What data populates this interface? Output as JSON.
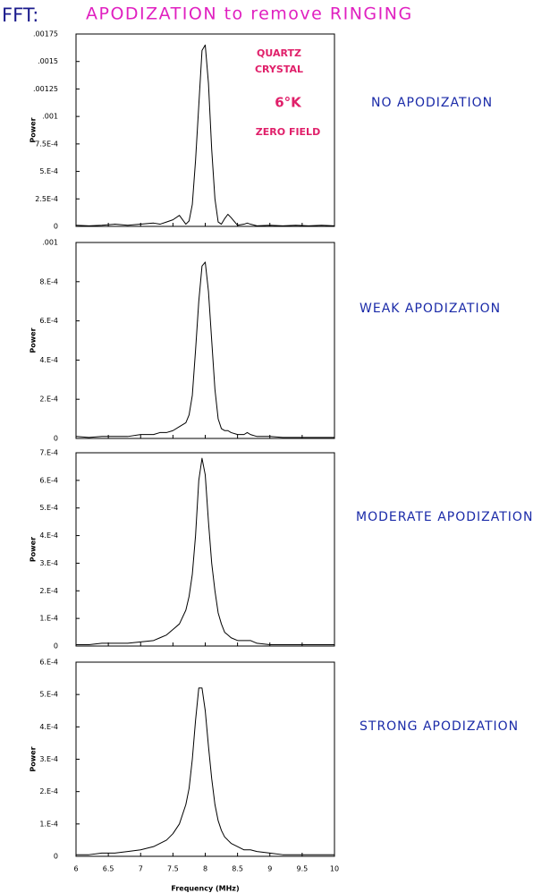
{
  "title_prefix": "FFT:",
  "title": "APODIZATION to remove RINGING",
  "chart_data": [
    {
      "type": "line",
      "annotation": "NO APODIZATION",
      "notes": [
        "QUARTZ",
        "CRYSTAL",
        "6°K",
        "ZERO FIELD"
      ],
      "ylabel": "Power",
      "x": [
        6.0,
        6.2,
        6.4,
        6.6,
        6.8,
        7.0,
        7.2,
        7.3,
        7.4,
        7.5,
        7.6,
        7.7,
        7.75,
        7.8,
        7.85,
        7.9,
        7.95,
        8.0,
        8.05,
        8.1,
        8.15,
        8.2,
        8.25,
        8.3,
        8.35,
        8.4,
        8.5,
        8.6,
        8.65,
        8.7,
        8.8,
        9.0,
        9.2,
        9.4,
        9.6,
        9.8,
        10.0
      ],
      "series": [
        {
          "color": "#000000",
          "values": [
            1e-05,
            5e-06,
            1e-05,
            2e-05,
            1e-05,
            2e-05,
            3e-05,
            2e-05,
            4e-05,
            6e-05,
            0.0001,
            2e-05,
            5e-05,
            0.0002,
            0.0006,
            0.0011,
            0.0016,
            0.00165,
            0.0013,
            0.0007,
            0.00025,
            4e-05,
            2e-05,
            7e-05,
            0.00011,
            8e-05,
            1e-05,
            2e-05,
            3e-05,
            2e-05,
            5e-06,
            1e-05,
            5e-06,
            1e-05,
            5e-06,
            1e-05,
            5e-06
          ]
        }
      ],
      "xlim": [
        6,
        10
      ],
      "xticks": [
        6,
        6.5,
        7,
        7.5,
        8,
        8.5,
        9,
        9.5,
        10
      ],
      "ylim": [
        0,
        0.00175
      ],
      "yticks": [
        0,
        {
          "value": 0.00025,
          "label": "2.5E-4"
        },
        {
          "value": 0.0005,
          "label": "5.E-4"
        },
        {
          "value": 0.00075,
          "label": "7.5E-4"
        },
        {
          "value": 0.001,
          "label": ".001"
        },
        {
          "value": 0.00125,
          "label": ".00125"
        },
        {
          "value": 0.0015,
          "label": ".0015"
        },
        {
          "value": 0.00175,
          "label": ".00175"
        }
      ]
    },
    {
      "type": "line",
      "annotation": "WEAK APODIZATION",
      "ylabel": "Power",
      "x": [
        6.0,
        6.2,
        6.4,
        6.6,
        6.8,
        7.0,
        7.2,
        7.3,
        7.4,
        7.5,
        7.6,
        7.7,
        7.75,
        7.8,
        7.85,
        7.9,
        7.95,
        8.0,
        8.05,
        8.1,
        8.15,
        8.2,
        8.25,
        8.3,
        8.35,
        8.4,
        8.5,
        8.6,
        8.65,
        8.7,
        8.8,
        9.0,
        9.2,
        9.4,
        9.6,
        9.8,
        10.0
      ],
      "series": [
        {
          "color": "#000000",
          "values": [
            1e-05,
            5e-06,
            1e-05,
            1e-05,
            1e-05,
            2e-05,
            2e-05,
            3e-05,
            3e-05,
            4e-05,
            6e-05,
            8e-05,
            0.00012,
            0.00022,
            0.00045,
            0.0007,
            0.00088,
            0.0009,
            0.00075,
            0.0005,
            0.00025,
            0.0001,
            5e-05,
            4e-05,
            4e-05,
            3e-05,
            2e-05,
            2e-05,
            3e-05,
            2e-05,
            1e-05,
            1e-05,
            5e-06,
            5e-06,
            5e-06,
            5e-06,
            5e-06
          ]
        }
      ],
      "xlim": [
        6,
        10
      ],
      "xticks": [
        6,
        6.5,
        7,
        7.5,
        8,
        8.5,
        9,
        9.5,
        10
      ],
      "ylim": [
        0,
        0.001
      ],
      "yticks": [
        0,
        {
          "value": 0.0002,
          "label": "2.E-4"
        },
        {
          "value": 0.0004,
          "label": "4.E-4"
        },
        {
          "value": 0.0006,
          "label": "6.E-4"
        },
        {
          "value": 0.0008,
          "label": "8.E-4"
        },
        {
          "value": 0.001,
          "label": ".001"
        }
      ]
    },
    {
      "type": "line",
      "annotation": "MODERATE APODIZATION",
      "ylabel": "Power",
      "x": [
        6.0,
        6.2,
        6.4,
        6.6,
        6.8,
        7.0,
        7.2,
        7.3,
        7.4,
        7.5,
        7.6,
        7.7,
        7.75,
        7.8,
        7.85,
        7.9,
        7.95,
        8.0,
        8.05,
        8.1,
        8.15,
        8.2,
        8.25,
        8.3,
        8.35,
        8.4,
        8.5,
        8.6,
        8.65,
        8.7,
        8.8,
        9.0,
        9.2,
        9.4,
        9.6,
        9.8,
        10.0
      ],
      "series": [
        {
          "color": "#000000",
          "values": [
            5e-06,
            5e-06,
            1e-05,
            1e-05,
            1e-05,
            1.5e-05,
            2e-05,
            3e-05,
            4e-05,
            6e-05,
            8e-05,
            0.00013,
            0.00018,
            0.00026,
            0.0004,
            0.0006,
            0.00068,
            0.00062,
            0.00045,
            0.0003,
            0.0002,
            0.00012,
            8e-05,
            5e-05,
            4e-05,
            3e-05,
            2e-05,
            2e-05,
            2e-05,
            2e-05,
            1e-05,
            5e-06,
            5e-06,
            5e-06,
            5e-06,
            5e-06,
            5e-06
          ]
        }
      ],
      "xlim": [
        6,
        10
      ],
      "xticks": [
        6,
        6.5,
        7,
        7.5,
        8,
        8.5,
        9,
        9.5,
        10
      ],
      "ylim": [
        0,
        0.0007
      ],
      "yticks": [
        0,
        {
          "value": 0.0001,
          "label": "1.E-4"
        },
        {
          "value": 0.0002,
          "label": "2.E-4"
        },
        {
          "value": 0.0003,
          "label": "3.E-4"
        },
        {
          "value": 0.0004,
          "label": "4.E-4"
        },
        {
          "value": 0.0005,
          "label": "5.E-4"
        },
        {
          "value": 0.0006,
          "label": "6.E-4"
        },
        {
          "value": 0.0007,
          "label": "7.E-4"
        }
      ]
    },
    {
      "type": "line",
      "annotation": "STRONG APODIZATION",
      "ylabel": "Power",
      "xlabel": "Frequency (MHz)",
      "x": [
        6.0,
        6.2,
        6.4,
        6.6,
        6.8,
        7.0,
        7.2,
        7.3,
        7.4,
        7.5,
        7.6,
        7.7,
        7.75,
        7.8,
        7.85,
        7.9,
        7.95,
        8.0,
        8.05,
        8.1,
        8.15,
        8.2,
        8.25,
        8.3,
        8.35,
        8.4,
        8.5,
        8.6,
        8.65,
        8.7,
        8.8,
        9.0,
        9.2,
        9.4,
        9.6,
        9.8,
        10.0
      ],
      "series": [
        {
          "color": "#000000",
          "values": [
            5e-06,
            5e-06,
            1e-05,
            1e-05,
            1.5e-05,
            2e-05,
            3e-05,
            4e-05,
            5e-05,
            7e-05,
            0.0001,
            0.00016,
            0.00021,
            0.0003,
            0.00042,
            0.00052,
            0.00052,
            0.00045,
            0.00034,
            0.00024,
            0.00016,
            0.00011,
            8e-05,
            6e-05,
            5e-05,
            4e-05,
            3e-05,
            2e-05,
            2e-05,
            2e-05,
            1.5e-05,
            1e-05,
            5e-06,
            5e-06,
            5e-06,
            5e-06,
            5e-06
          ]
        }
      ],
      "xlim": [
        6,
        10
      ],
      "xticks": [
        6,
        6.5,
        7,
        7.5,
        8,
        8.5,
        9,
        9.5,
        10
      ],
      "ylim": [
        0,
        0.0006
      ],
      "yticks": [
        0,
        {
          "value": 0.0001,
          "label": "1.E-4"
        },
        {
          "value": 0.0002,
          "label": "2.E-4"
        },
        {
          "value": 0.0003,
          "label": "3.E-4"
        },
        {
          "value": 0.0004,
          "label": "4.E-4"
        },
        {
          "value": 0.0005,
          "label": "5.E-4"
        },
        {
          "value": 0.0006,
          "label": "6.E-4"
        }
      ]
    }
  ]
}
